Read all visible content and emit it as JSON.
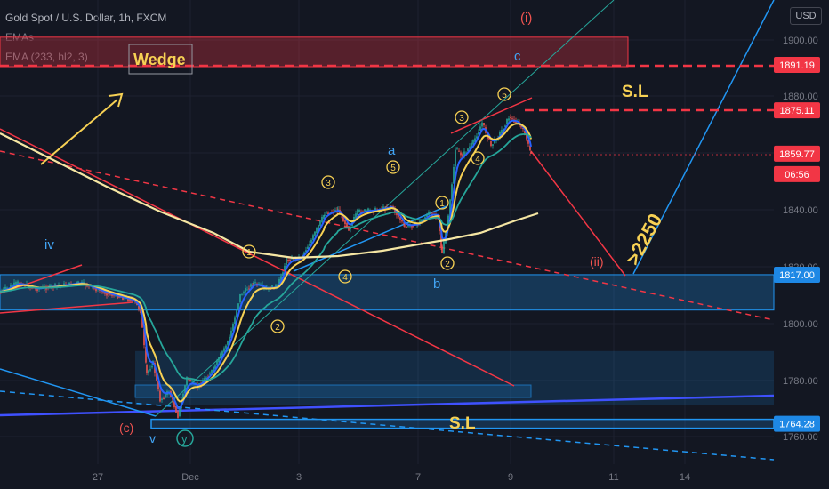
{
  "header": {
    "symbol_line": "Gold Spot / U.S. Dollar, 1h, FXCM",
    "indicator_1": "EMAs",
    "indicator_2": "EMA (233, hl2, 3)"
  },
  "currency_button": "USD",
  "colors": {
    "background": "#131722",
    "up": "#26a69a",
    "down": "#ef5350",
    "ema_fast": "#2962ff",
    "ema_mid": "#f7d154",
    "ema_slow": "#26a69a",
    "ema_233": "#f5e6a3",
    "resistance": "#f23645",
    "support": "#2196f3"
  },
  "annotations": {
    "wedge": "Wedge",
    "sl_top": "S.L",
    "sl_bottom": "S.L",
    "target": ">2250",
    "wave_i": "(i)",
    "wave_ii": "(ii)",
    "wave_iv": "iv",
    "wave_c_paren": "(c)",
    "wave_v": "v",
    "wave_y": "y",
    "wave_a": "a",
    "wave_b": "b",
    "wave_c": "c",
    "num_1": "1",
    "num_2": "2",
    "num_3": "3",
    "num_4": "4",
    "num_5": "5"
  },
  "price_tags": {
    "t1891": "1891.19",
    "t1875": "1875.11",
    "t1859": "1859.77",
    "countdown": "06:56",
    "t1817": "1817.00",
    "t1764": "1764.28"
  },
  "chart_data": {
    "type": "candlestick",
    "y_ticks": [
      "1900.00",
      "1880.00",
      "1860.00",
      "1840.00",
      "1820.00",
      "1800.00",
      "1780.00",
      "1760.00"
    ],
    "x_ticks": [
      "27",
      "Dec",
      "3",
      "7",
      "9",
      "11",
      "14"
    ],
    "ylim": [
      1745,
      1912
    ],
    "levels": {
      "sell_zone": [
        1891.19,
        1901
      ],
      "stop_loss_top": 1875.11,
      "last_price": 1859.77,
      "upper_support_zone": [
        1804.5,
        1817.0
      ],
      "lower_box": [
        1771,
        1790
      ],
      "stop_loss_bottom": 1764.28
    },
    "series": [
      {
        "name": "EMAs"
      },
      {
        "name": "EMA (233, hl2, 3)"
      }
    ]
  }
}
